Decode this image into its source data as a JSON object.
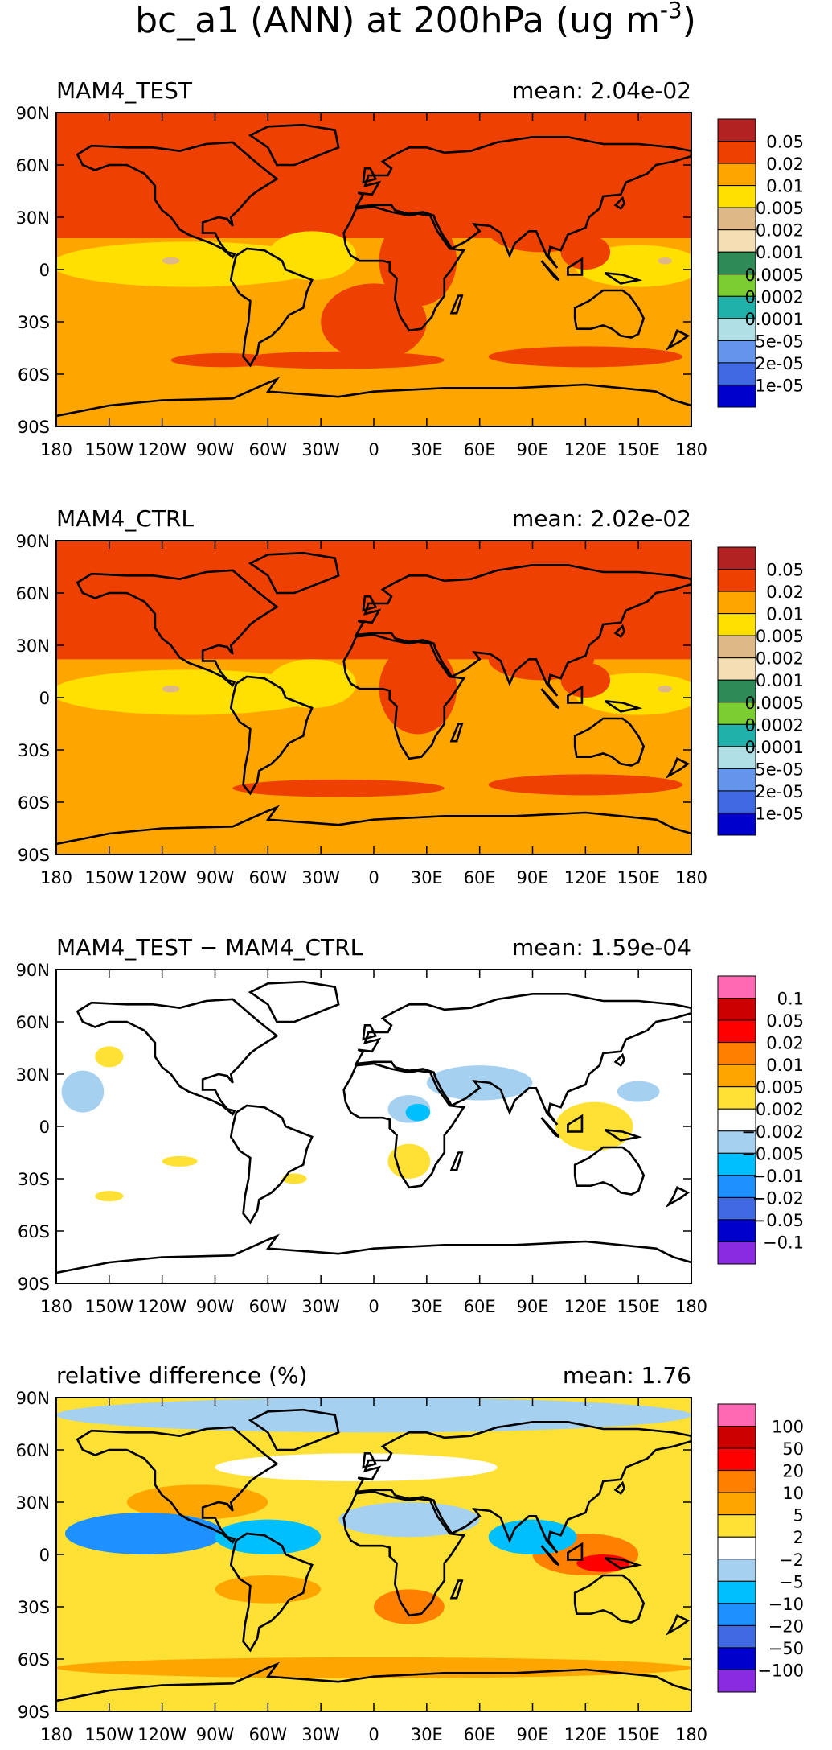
{
  "title": {
    "main": "bc_a1 (ANN) at 200hPa (ug m",
    "exponent": "-3",
    "close": ")"
  },
  "lat_labels": [
    "90N",
    "60N",
    "30N",
    "0",
    "30S",
    "60S",
    "90S"
  ],
  "lon_labels": [
    "180",
    "150W",
    "120W",
    "90W",
    "60W",
    "30W",
    "0",
    "30E",
    "60E",
    "90E",
    "120E",
    "150E",
    "180"
  ],
  "palettes": {
    "abs": [
      "#b22222",
      "#ee4000",
      "#ffa500",
      "#ffe000",
      "#deb887",
      "#f5deb3",
      "#2e8b57",
      "#7ccd32",
      "#20b2aa",
      "#b0e0e6",
      "#6495ed",
      "#4169e1",
      "#0000cd"
    ],
    "diff": [
      "#ff69b4",
      "#cd0000",
      "#ff0000",
      "#ff7f00",
      "#ffa500",
      "#ffe135",
      "#ffffff",
      "#a6d0f0",
      "#00bfff",
      "#1e90ff",
      "#4169e1",
      "#0000cd",
      "#8a2be2"
    ]
  },
  "panels": [
    {
      "id": "test",
      "label": "MAM4_TEST",
      "mean": "mean: 2.04e-02",
      "type": "abs",
      "colorbar": [
        "0.05",
        "0.02",
        "0.01",
        "0.005",
        "0.002",
        "0.001",
        "0.0005",
        "0.0002",
        "0.0001",
        "5e-05",
        "2e-05",
        "1e-05"
      ]
    },
    {
      "id": "ctrl",
      "label": "MAM4_CTRL",
      "mean": "mean: 2.02e-02",
      "type": "abs",
      "colorbar": [
        "0.05",
        "0.02",
        "0.01",
        "0.005",
        "0.002",
        "0.001",
        "0.0005",
        "0.0002",
        "0.0001",
        "5e-05",
        "2e-05",
        "1e-05"
      ]
    },
    {
      "id": "diff",
      "label": "MAM4_TEST − MAM4_CTRL",
      "mean": "mean: 1.59e-04",
      "type": "diff",
      "colorbar": [
        "0.1",
        "0.05",
        "0.02",
        "0.01",
        "0.005",
        "0.002",
        "−0.002",
        "−0.005",
        "−0.01",
        "−0.02",
        "−0.05",
        "−0.1"
      ]
    },
    {
      "id": "rel",
      "label": "relative difference (%)",
      "mean": "mean:   1.76",
      "type": "rel",
      "colorbar": [
        "100",
        "50",
        "20",
        "10",
        "5",
        "2",
        "−2",
        "−5",
        "−10",
        "−20",
        "−50",
        "−100"
      ]
    }
  ]
}
